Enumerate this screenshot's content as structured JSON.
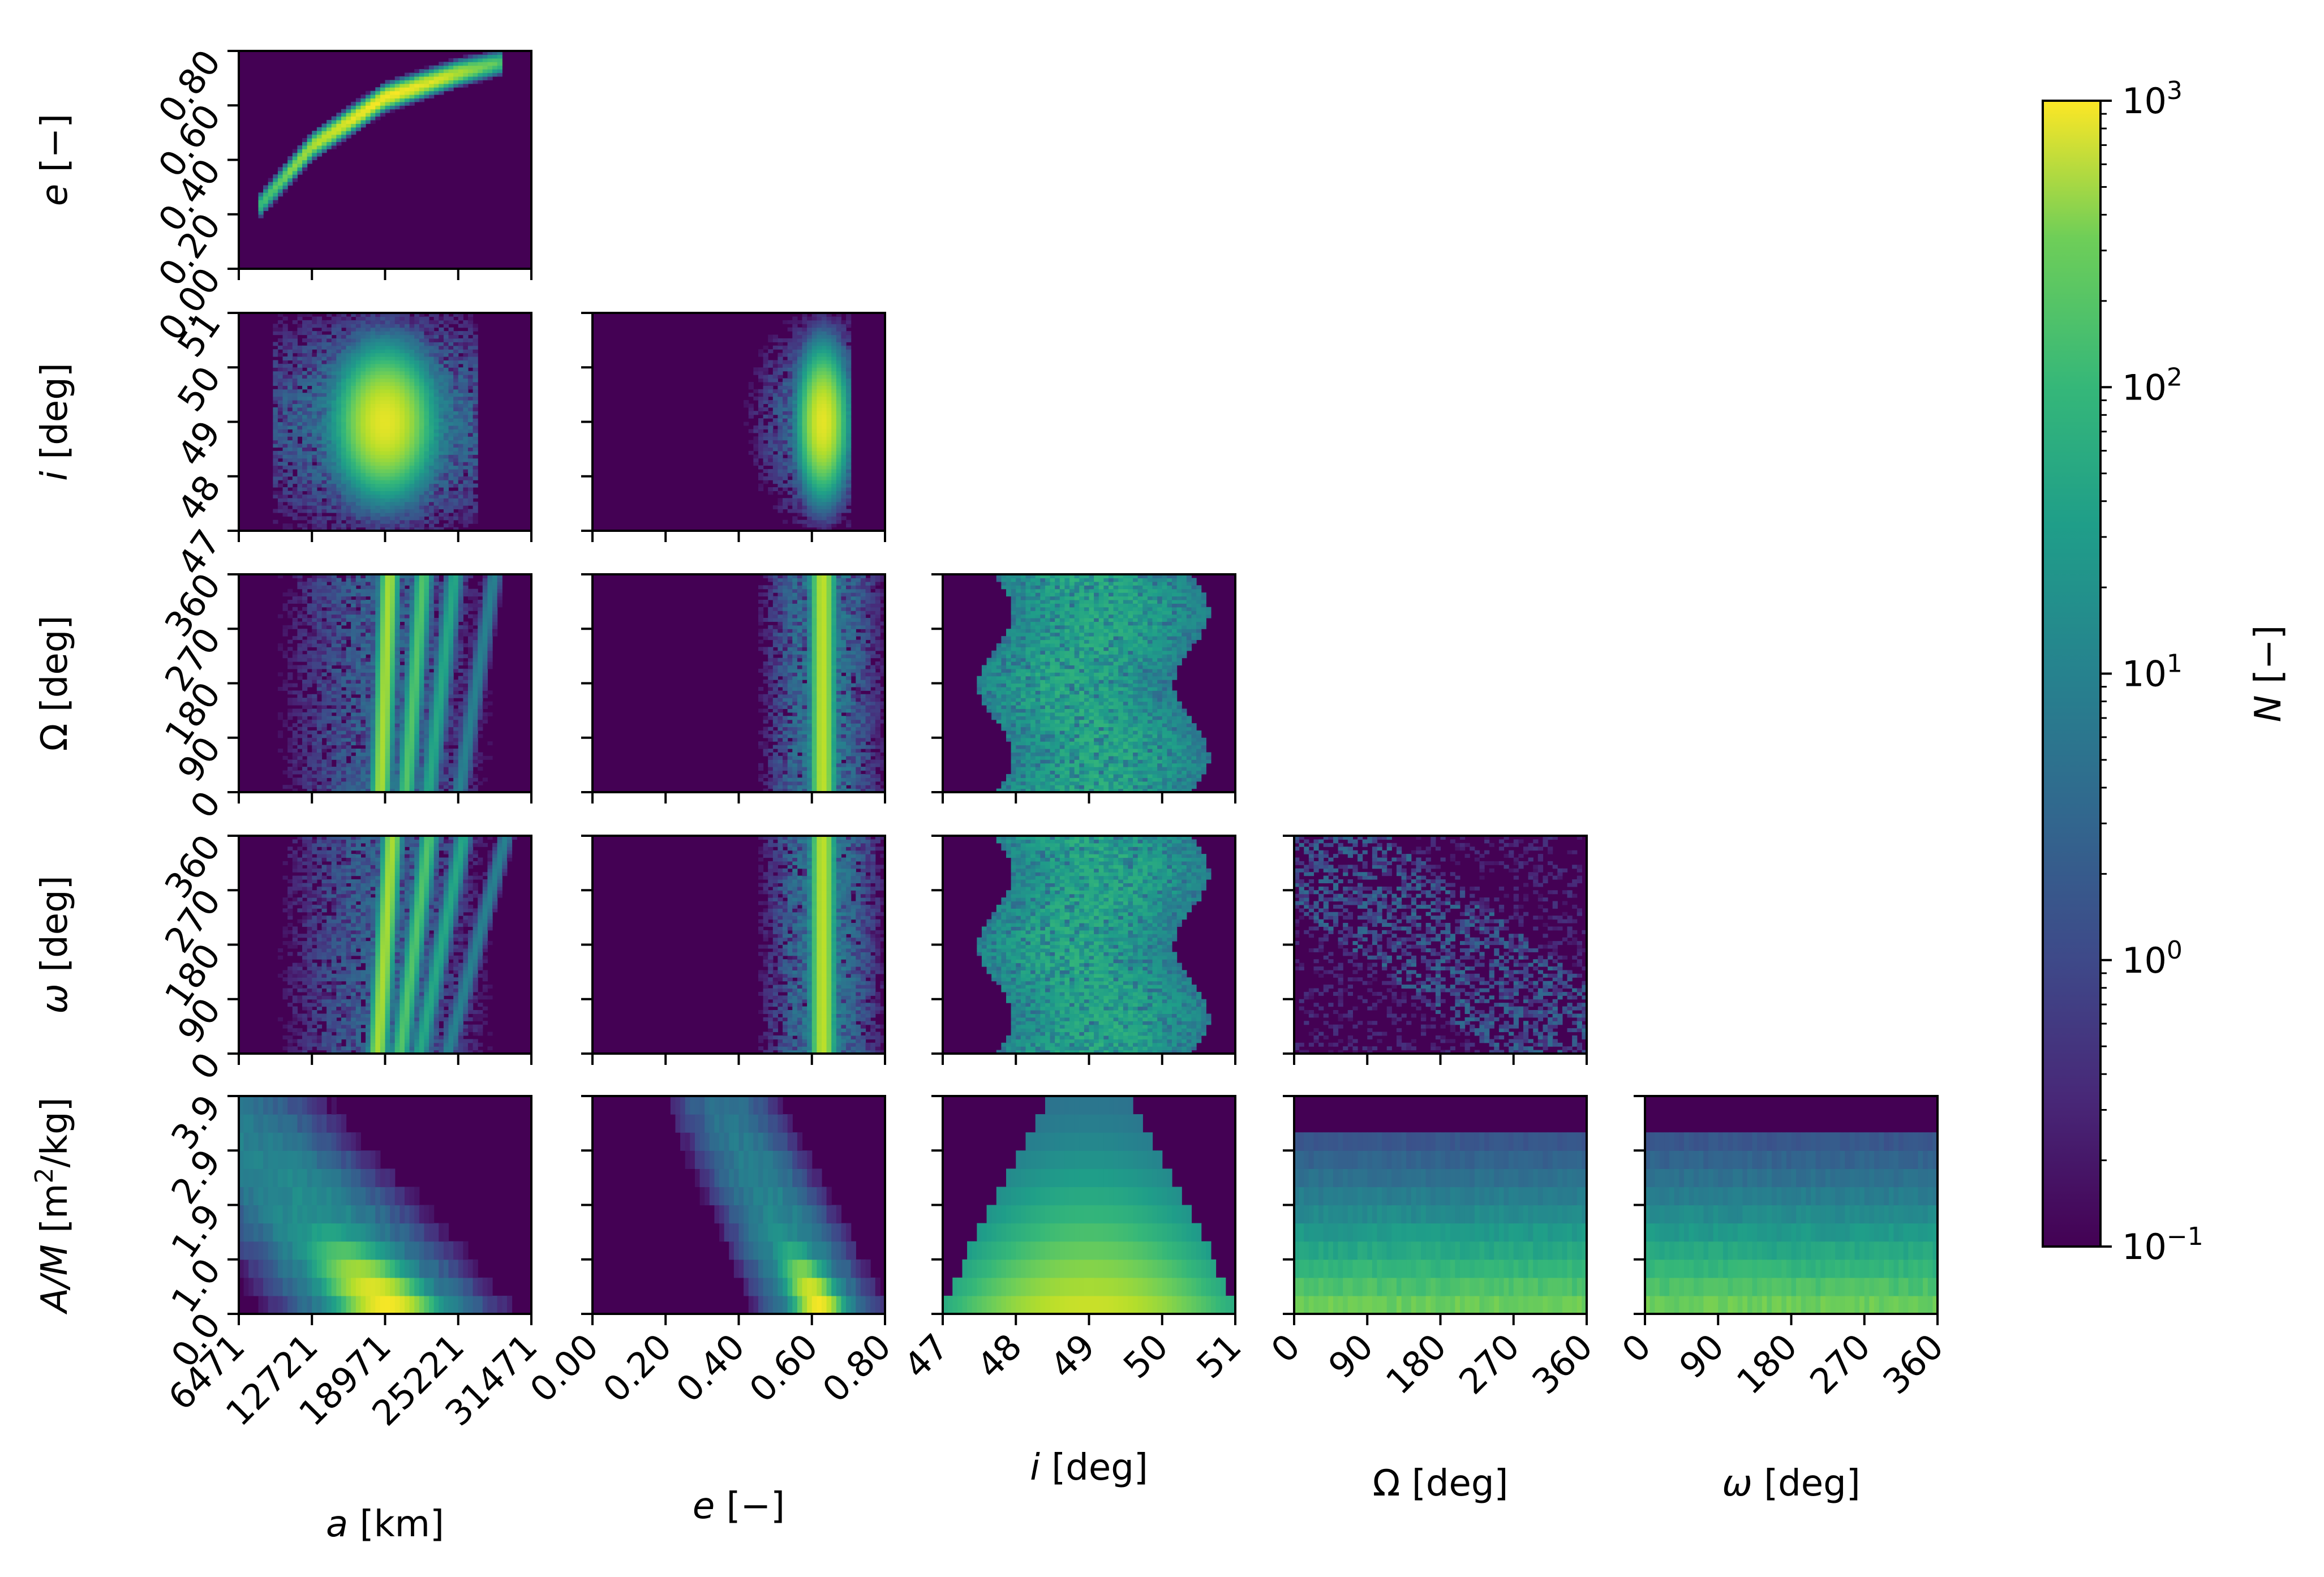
{
  "chart_data": {
    "type": "heatmap",
    "layout": "corner-plot",
    "variables": [
      {
        "key": "a",
        "label": "a [km]",
        "ticks": [
          "6471",
          "12721",
          "18971",
          "25221",
          "31471"
        ],
        "range": [
          6471,
          31471
        ]
      },
      {
        "key": "e",
        "label": "e [−]",
        "ticks": [
          "0.00",
          "0.20",
          "0.40",
          "0.60",
          "0.80"
        ],
        "range": [
          0.0,
          0.8
        ]
      },
      {
        "key": "i",
        "label": "i [deg]",
        "ticks": [
          "47",
          "48",
          "49",
          "50",
          "51"
        ],
        "range": [
          47,
          51
        ]
      },
      {
        "key": "Omega",
        "label": "Ω [deg]",
        "ticks": [
          "0",
          "90",
          "180",
          "270",
          "360"
        ],
        "range": [
          0,
          360
        ]
      },
      {
        "key": "omega",
        "label": "ω [deg]",
        "ticks": [
          "0",
          "90",
          "180",
          "270",
          "360"
        ],
        "range": [
          0,
          360
        ]
      },
      {
        "key": "AM",
        "label": "A/M [m²/kg]",
        "ticks": [
          "0.0",
          "1.0",
          "1.9",
          "2.9",
          "3.9"
        ],
        "range": [
          0.0,
          3.9
        ]
      }
    ],
    "panels": [
      {
        "row": 0,
        "col": 0,
        "x": "a",
        "y": "e"
      },
      {
        "row": 1,
        "col": 0,
        "x": "a",
        "y": "i"
      },
      {
        "row": 1,
        "col": 1,
        "x": "e",
        "y": "i"
      },
      {
        "row": 2,
        "col": 0,
        "x": "a",
        "y": "Omega"
      },
      {
        "row": 2,
        "col": 1,
        "x": "e",
        "y": "Omega"
      },
      {
        "row": 2,
        "col": 2,
        "x": "i",
        "y": "Omega"
      },
      {
        "row": 3,
        "col": 0,
        "x": "a",
        "y": "omega"
      },
      {
        "row": 3,
        "col": 1,
        "x": "e",
        "y": "omega"
      },
      {
        "row": 3,
        "col": 2,
        "x": "i",
        "y": "omega"
      },
      {
        "row": 3,
        "col": 3,
        "x": "Omega",
        "y": "omega"
      },
      {
        "row": 4,
        "col": 0,
        "x": "a",
        "y": "AM"
      },
      {
        "row": 4,
        "col": 1,
        "x": "e",
        "y": "AM"
      },
      {
        "row": 4,
        "col": 2,
        "x": "i",
        "y": "AM"
      },
      {
        "row": 4,
        "col": 3,
        "x": "Omega",
        "y": "AM"
      },
      {
        "row": 4,
        "col": 4,
        "x": "omega",
        "y": "AM"
      }
    ],
    "colorbar": {
      "label": "N [−]",
      "scale": "log",
      "range": [
        0.1,
        1000
      ],
      "ticks": [
        {
          "base": "10",
          "exp": "3",
          "value": 1000
        },
        {
          "base": "10",
          "exp": "2",
          "value": 100
        },
        {
          "base": "10",
          "exp": "1",
          "value": 10
        },
        {
          "base": "10",
          "exp": "0",
          "value": 1
        },
        {
          "base": "10",
          "exp": "−1",
          "value": 0.1
        }
      ],
      "colormap": "viridis"
    },
    "colors": {
      "background": "#440154",
      "low": "#3b528b",
      "mid": "#21918c",
      "high": "#5ec962",
      "peak": "#fde725"
    },
    "distributions": {
      "a_peak": 18971,
      "e_peak": 0.63,
      "i_peak": 49.0,
      "AM_peak": 0.3,
      "a_e_curve": [
        [
          8000,
          0.22
        ],
        [
          12721,
          0.45
        ],
        [
          18971,
          0.63
        ],
        [
          25221,
          0.72
        ],
        [
          29000,
          0.76
        ]
      ],
      "a_streak_centers": [
        18971,
        21500,
        23800,
        26800
      ],
      "Omega_omega_anticorrelated": true
    },
    "grid": false
  }
}
